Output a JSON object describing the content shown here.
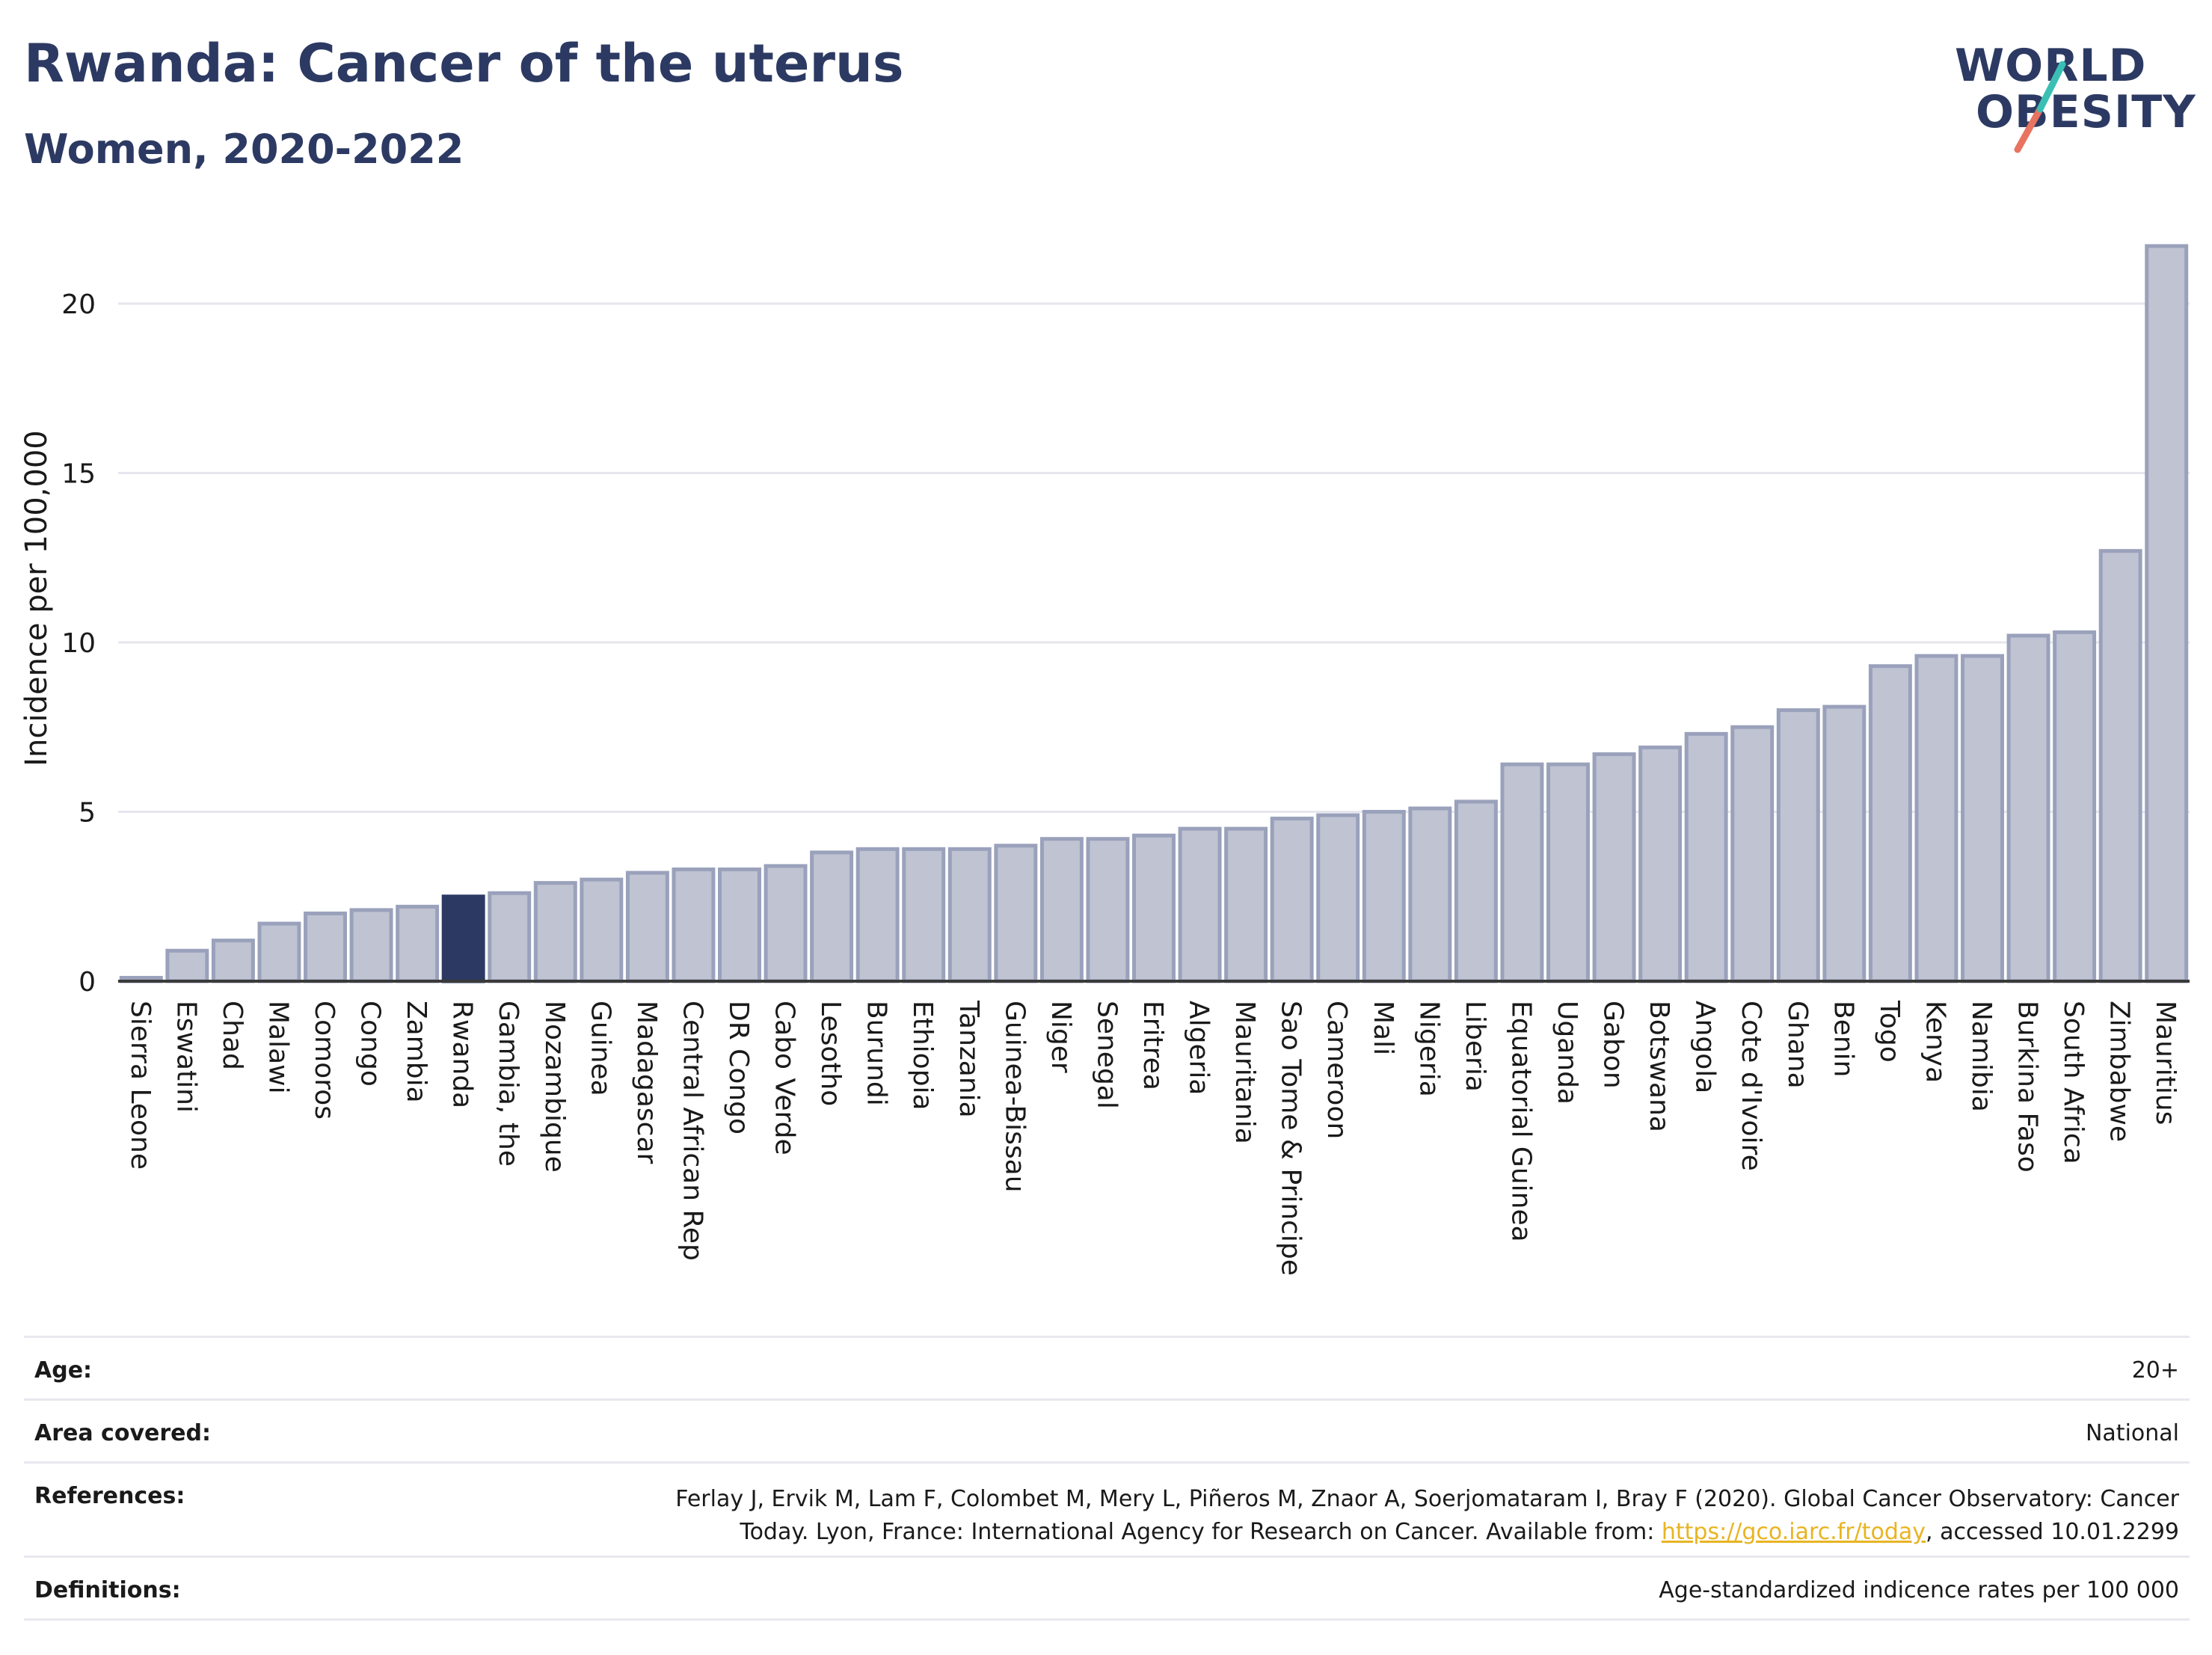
{
  "header": {
    "title": "Rwanda: Cancer of the uterus",
    "subtitle": "Women, 2020-2022"
  },
  "logo": {
    "line1": "WORLD",
    "line2": "OBESITY"
  },
  "chart_data": {
    "type": "bar",
    "title": "Rwanda: Cancer of the uterus",
    "subtitle": "Women, 2020-2022",
    "xlabel": "",
    "ylabel": "Incidence per 100,000",
    "ylim": [
      0,
      22
    ],
    "yticks": [
      0,
      5,
      10,
      15,
      20
    ],
    "grid": true,
    "legend": "none",
    "highlight": "Rwanda",
    "colors": {
      "bar": "#bfc3d2",
      "bar_edge": "#9aa1bb",
      "highlight": "#2c3a63",
      "grid": "#e6e6ee",
      "axis": "#3a3a3a"
    },
    "categories": [
      "Sierra Leone",
      "Eswatini",
      "Chad",
      "Malawi",
      "Comoros",
      "Congo",
      "Zambia",
      "Rwanda",
      "Gambia, the",
      "Mozambique",
      "Guinea",
      "Madagascar",
      "Central African Rep",
      "DR Congo",
      "Cabo Verde",
      "Lesotho",
      "Burundi",
      "Ethiopia",
      "Tanzania",
      "Guinea-Bissau",
      "Niger",
      "Senegal",
      "Eritrea",
      "Algeria",
      "Mauritania",
      "Sao Tome & Principe",
      "Cameroon",
      "Mali",
      "Nigeria",
      "Liberia",
      "Equatorial Guinea",
      "Uganda",
      "Gabon",
      "Botswana",
      "Angola",
      "Cote d'Ivoire",
      "Ghana",
      "Benin",
      "Togo",
      "Kenya",
      "Namibia",
      "Burkina Faso",
      "South Africa",
      "Zimbabwe",
      "Mauritius"
    ],
    "values": [
      0.1,
      0.9,
      1.2,
      1.7,
      2.0,
      2.1,
      2.2,
      2.5,
      2.6,
      2.9,
      3.0,
      3.2,
      3.3,
      3.3,
      3.4,
      3.8,
      3.9,
      3.9,
      3.9,
      4.0,
      4.2,
      4.2,
      4.3,
      4.5,
      4.5,
      4.8,
      4.9,
      5.0,
      5.1,
      5.3,
      6.4,
      6.4,
      6.7,
      6.9,
      7.3,
      7.5,
      8.0,
      8.1,
      9.3,
      9.6,
      9.6,
      10.2,
      10.3,
      12.7,
      21.7
    ]
  },
  "info": {
    "age_label": "Age:",
    "age_value": "20+",
    "area_label": "Area covered:",
    "area_value": "National",
    "references_label": "References:",
    "references_line1": "Ferlay J, Ervik M, Lam F, Colombet M, Mery L, Piñeros M, Znaor A, Soerjomataram I, Bray F (2020). Global Cancer Observatory: Cancer",
    "references_line2_prefix": "Today. Lyon, France: International Agency for Research on Cancer. Available from: ",
    "references_link": "https://gco.iarc.fr/today",
    "references_line2_suffix": ", accessed 10.01.2299",
    "definitions_label": "Definitions:",
    "definitions_value": "Age-standardized indicence rates per 100 000"
  }
}
